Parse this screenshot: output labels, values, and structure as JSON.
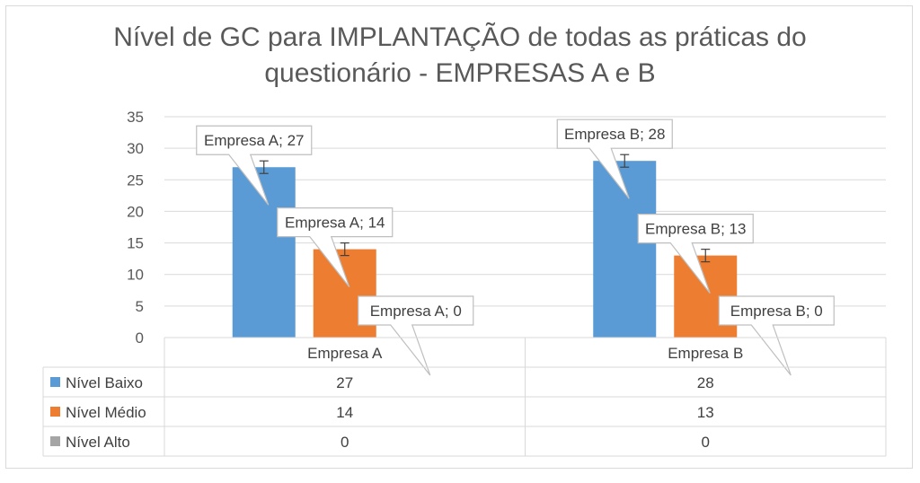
{
  "chart_data": {
    "type": "bar",
    "title": "Nível de GC para IMPLANTAÇÃO de todas as práticas do questionário - EMPRESAS A e B",
    "title_lines": [
      "Nível de GC para IMPLANTAÇÃO de todas as práticas do",
      "questionário - EMPRESAS A e B"
    ],
    "categories": [
      "Empresa A",
      "Empresa B"
    ],
    "series": [
      {
        "name": "Nível Baixo",
        "values": [
          27,
          28
        ],
        "color": "#5b9bd5"
      },
      {
        "name": "Nível Médio",
        "values": [
          14,
          13
        ],
        "color": "#ed7d31"
      },
      {
        "name": "Nível Alto",
        "values": [
          0,
          0
        ],
        "color": "#a5a5a5"
      }
    ],
    "data_labels": [
      [
        "Empresa A; 27",
        "Empresa B; 28"
      ],
      [
        "Empresa A; 14",
        "Empresa B; 13"
      ],
      [
        "Empresa A; 0",
        "Empresa B; 0"
      ]
    ],
    "ylim": [
      0,
      35
    ],
    "yticks": [
      0,
      5,
      10,
      15,
      20,
      25,
      30,
      35
    ],
    "grid": true,
    "legend": "data-table",
    "error_bars": true
  }
}
